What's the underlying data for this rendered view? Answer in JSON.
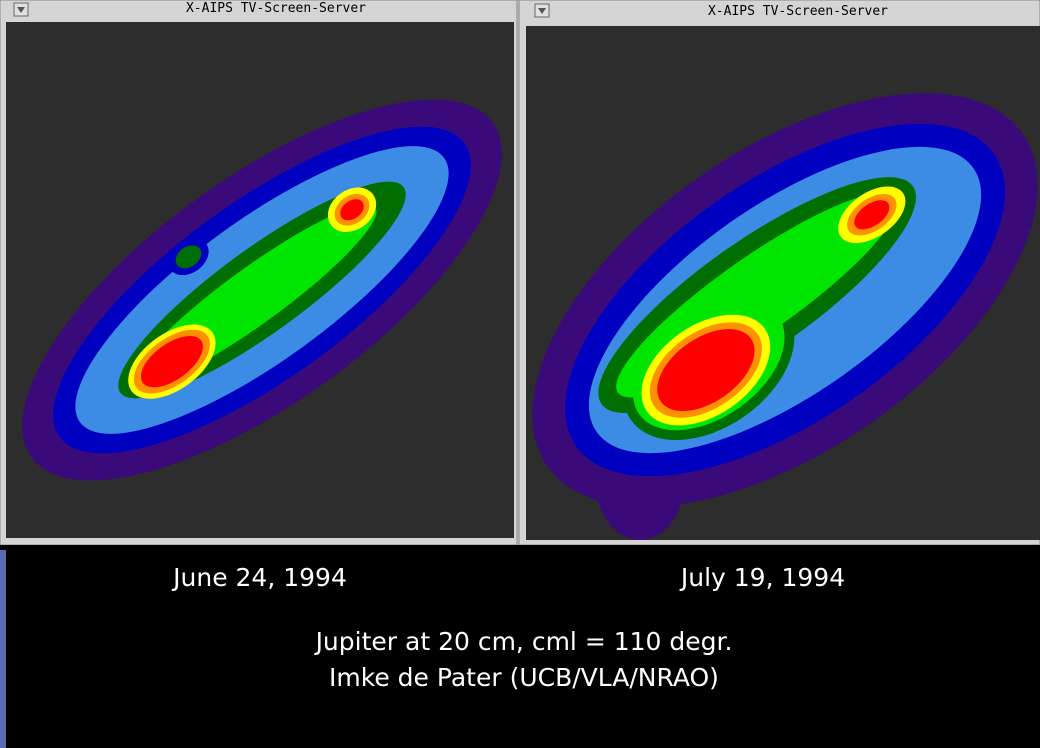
{
  "windows": [
    {
      "title": "X-AIPS TV-Screen-Server"
    },
    {
      "title": "X-AIPS TV-Screen-Server"
    }
  ],
  "caption": {
    "dates": [
      "June 24, 1994",
      "July 19, 1994"
    ],
    "lines": [
      "Jupiter at 20 cm, cml = 110 degr.",
      "Imke de Pater (UCB/VLA/NRAO)"
    ]
  }
}
